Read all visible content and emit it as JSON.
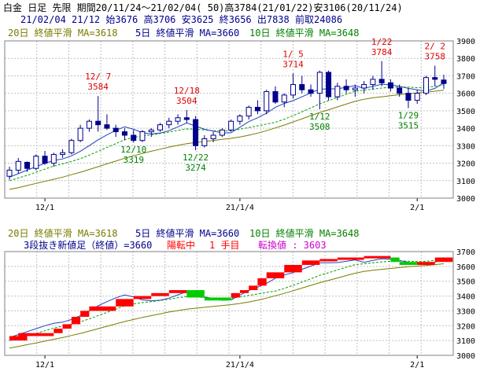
{
  "header": {
    "line1": "白金 日足 先限 期間20/11/24～21/02/04( 50)高3784(21/01/22)安3106(20/11/24)",
    "line2": "21/02/04 21/12 始3676 高3706 安3625 終3656 出7838 前取24086"
  },
  "legend": {
    "ma20": "20日 終値平滑 MA=3618",
    "ma5": "5日 終値平滑 MA=3660",
    "ma10": "10日 終値平滑 MA=3648"
  },
  "lower_info": {
    "kagi": "3段抜き新値足（終値）=3660",
    "trend": "陽転中",
    "count": "1 手目",
    "turn": "転換値 : 3603"
  },
  "colors": {
    "background": "#ffffff",
    "grid": "#c0c0c0",
    "candle_up_body": "#ffffff",
    "candle_down_body": "#00008b",
    "candle_outline": "#00008b",
    "ma5": "#1f3fbf",
    "ma10": "#00a000",
    "ma20": "#7a7a00",
    "annotation_high": "#e00000",
    "annotation_low": "#008000",
    "brick_up": "#ff0000",
    "brick_down": "#00cc00",
    "header_text": "#000000",
    "legend_ma20": "#7a7a00",
    "legend_ma5": "#00008b",
    "legend_ma10": "#008000",
    "trend_text": "#ff0000",
    "turn_text": "#cc00cc"
  },
  "chart_data": [
    {
      "type": "candlestick",
      "ylim": [
        3000,
        3900
      ],
      "yticks": [
        3000,
        3100,
        3200,
        3300,
        3400,
        3500,
        3600,
        3700,
        3800,
        3900
      ],
      "xticks": [
        {
          "index": 4,
          "label": "12/1"
        },
        {
          "index": 26,
          "label": "21/1/4"
        },
        {
          "index": 46,
          "label": "2/1"
        }
      ],
      "candles": [
        [
          3125,
          3180,
          3106,
          3160
        ],
        [
          3160,
          3230,
          3140,
          3210
        ],
        [
          3205,
          3210,
          3150,
          3170
        ],
        [
          3170,
          3250,
          3160,
          3240
        ],
        [
          3240,
          3270,
          3190,
          3200
        ],
        [
          3200,
          3260,
          3180,
          3250
        ],
        [
          3250,
          3280,
          3230,
          3260
        ],
        [
          3260,
          3340,
          3250,
          3330
        ],
        [
          3330,
          3420,
          3320,
          3400
        ],
        [
          3400,
          3450,
          3380,
          3440
        ],
        [
          3440,
          3584,
          3380,
          3420
        ],
        [
          3420,
          3480,
          3390,
          3400
        ],
        [
          3400,
          3420,
          3350,
          3380
        ],
        [
          3380,
          3400,
          3330,
          3360
        ],
        [
          3360,
          3390,
          3319,
          3330
        ],
        [
          3330,
          3390,
          3320,
          3380
        ],
        [
          3380,
          3400,
          3350,
          3390
        ],
        [
          3390,
          3430,
          3380,
          3420
        ],
        [
          3420,
          3460,
          3400,
          3440
        ],
        [
          3440,
          3480,
          3420,
          3460
        ],
        [
          3460,
          3504,
          3430,
          3450
        ],
        [
          3450,
          3470,
          3274,
          3300
        ],
        [
          3300,
          3360,
          3290,
          3340
        ],
        [
          3340,
          3380,
          3320,
          3360
        ],
        [
          3360,
          3400,
          3350,
          3390
        ],
        [
          3390,
          3450,
          3380,
          3440
        ],
        [
          3440,
          3480,
          3420,
          3470
        ],
        [
          3470,
          3530,
          3450,
          3520
        ],
        [
          3520,
          3560,
          3480,
          3500
        ],
        [
          3500,
          3620,
          3480,
          3610
        ],
        [
          3610,
          3640,
          3540,
          3550
        ],
        [
          3550,
          3600,
          3520,
          3590
        ],
        [
          3590,
          3714,
          3570,
          3650
        ],
        [
          3650,
          3700,
          3600,
          3620
        ],
        [
          3620,
          3650,
          3580,
          3600
        ],
        [
          3600,
          3730,
          3508,
          3720
        ],
        [
          3720,
          3730,
          3560,
          3580
        ],
        [
          3580,
          3660,
          3560,
          3640
        ],
        [
          3640,
          3680,
          3600,
          3620
        ],
        [
          3620,
          3650,
          3580,
          3630
        ],
        [
          3630,
          3670,
          3600,
          3650
        ],
        [
          3650,
          3700,
          3620,
          3680
        ],
        [
          3680,
          3784,
          3640,
          3660
        ],
        [
          3660,
          3680,
          3610,
          3630
        ],
        [
          3630,
          3650,
          3580,
          3600
        ],
        [
          3600,
          3630,
          3515,
          3560
        ],
        [
          3560,
          3620,
          3540,
          3600
        ],
        [
          3600,
          3700,
          3590,
          3690
        ],
        [
          3690,
          3758,
          3640,
          3680
        ],
        [
          3676,
          3706,
          3625,
          3656
        ]
      ],
      "ma5": [
        3120,
        3140,
        3160,
        3180,
        3200,
        3216,
        3224,
        3242,
        3268,
        3300,
        3334,
        3362,
        3388,
        3408,
        3394,
        3374,
        3368,
        3372,
        3386,
        3408,
        3430,
        3412,
        3394,
        3384,
        3372,
        3374,
        3406,
        3438,
        3460,
        3486,
        3520,
        3542,
        3558,
        3580,
        3602,
        3624,
        3624,
        3626,
        3634,
        3644,
        3628,
        3640,
        3652,
        3648,
        3640,
        3628,
        3620,
        3612,
        3628,
        3660
      ],
      "ma10": [
        3100,
        3115,
        3130,
        3148,
        3166,
        3184,
        3196,
        3210,
        3226,
        3246,
        3268,
        3290,
        3312,
        3334,
        3348,
        3356,
        3362,
        3370,
        3378,
        3388,
        3396,
        3394,
        3390,
        3386,
        3384,
        3386,
        3394,
        3404,
        3414,
        3424,
        3434,
        3452,
        3472,
        3494,
        3516,
        3540,
        3558,
        3576,
        3594,
        3612,
        3618,
        3624,
        3630,
        3634,
        3636,
        3636,
        3632,
        3634,
        3640,
        3648
      ],
      "ma20": [
        3050,
        3060,
        3072,
        3084,
        3096,
        3108,
        3120,
        3134,
        3148,
        3164,
        3180,
        3196,
        3212,
        3228,
        3242,
        3256,
        3268,
        3280,
        3292,
        3302,
        3312,
        3318,
        3324,
        3330,
        3336,
        3342,
        3350,
        3360,
        3372,
        3386,
        3402,
        3418,
        3436,
        3454,
        3472,
        3490,
        3506,
        3522,
        3538,
        3554,
        3566,
        3574,
        3580,
        3586,
        3592,
        3598,
        3602,
        3606,
        3612,
        3618
      ],
      "annotations": [
        {
          "index": 10,
          "kind": "high",
          "date": "12/ 7",
          "value": "3584"
        },
        {
          "index": 20,
          "kind": "high",
          "date": "12/18",
          "value": "3504"
        },
        {
          "index": 32,
          "kind": "high",
          "date": "1/ 5",
          "value": "3714"
        },
        {
          "index": 42,
          "kind": "high",
          "date": "1/22",
          "value": "3784"
        },
        {
          "index": 48,
          "kind": "high",
          "date": "2/ 2",
          "value": "3758"
        },
        {
          "index": 14,
          "kind": "low",
          "date": "12/10",
          "value": "3319"
        },
        {
          "index": 21,
          "kind": "low",
          "date": "12/22",
          "value": "3274"
        },
        {
          "index": 35,
          "kind": "low",
          "date": "1/12",
          "value": "3508"
        },
        {
          "index": 45,
          "kind": "low",
          "date": "1/29",
          "value": "3515"
        }
      ]
    },
    {
      "type": "kagi-bricks",
      "ylim": [
        3000,
        3700
      ],
      "yticks": [
        3000,
        3100,
        3200,
        3300,
        3400,
        3500,
        3600,
        3700
      ],
      "xticks": [
        {
          "index": 4,
          "label": "12/1"
        },
        {
          "index": 26,
          "label": "21/1/4"
        },
        {
          "index": 46,
          "label": "2/1"
        }
      ],
      "bricks": [
        [
          0,
          2,
          3100,
          3130,
          "up"
        ],
        [
          1,
          5,
          3130,
          3150,
          "up"
        ],
        [
          5,
          6,
          3150,
          3180,
          "up"
        ],
        [
          6,
          7,
          3180,
          3210,
          "up"
        ],
        [
          7,
          8,
          3210,
          3260,
          "up"
        ],
        [
          8,
          9,
          3260,
          3300,
          "up"
        ],
        [
          9,
          12,
          3300,
          3330,
          "up"
        ],
        [
          12,
          14,
          3330,
          3380,
          "up"
        ],
        [
          14,
          16,
          3380,
          3400,
          "up"
        ],
        [
          16,
          18,
          3400,
          3420,
          "up"
        ],
        [
          18,
          20,
          3420,
          3440,
          "up"
        ],
        [
          20,
          22,
          3390,
          3440,
          "down"
        ],
        [
          22,
          23,
          3370,
          3390,
          "down"
        ],
        [
          23,
          25,
          3370,
          3390,
          "down"
        ],
        [
          25,
          26,
          3390,
          3420,
          "up"
        ],
        [
          26,
          27,
          3420,
          3440,
          "up"
        ],
        [
          27,
          28,
          3440,
          3470,
          "up"
        ],
        [
          28,
          29,
          3470,
          3520,
          "up"
        ],
        [
          29,
          31,
          3520,
          3560,
          "up"
        ],
        [
          31,
          33,
          3560,
          3610,
          "up"
        ],
        [
          33,
          35,
          3610,
          3640,
          "up"
        ],
        [
          35,
          37,
          3640,
          3650,
          "up"
        ],
        [
          37,
          40,
          3650,
          3660,
          "up"
        ],
        [
          40,
          43,
          3660,
          3670,
          "up"
        ],
        [
          43,
          44,
          3630,
          3660,
          "down"
        ],
        [
          44,
          46,
          3610,
          3630,
          "down"
        ],
        [
          46,
          48,
          3610,
          3630,
          "up"
        ],
        [
          48,
          50,
          3630,
          3660,
          "up"
        ]
      ],
      "ma5": [
        3120,
        3140,
        3160,
        3180,
        3200,
        3216,
        3224,
        3242,
        3268,
        3300,
        3334,
        3362,
        3388,
        3408,
        3394,
        3374,
        3368,
        3372,
        3386,
        3408,
        3430,
        3412,
        3394,
        3384,
        3372,
        3374,
        3406,
        3438,
        3460,
        3486,
        3520,
        3542,
        3558,
        3580,
        3602,
        3624,
        3624,
        3626,
        3634,
        3644,
        3628,
        3640,
        3652,
        3648,
        3640,
        3628,
        3620,
        3612,
        3628,
        3660
      ],
      "ma10": [
        3100,
        3115,
        3130,
        3148,
        3166,
        3184,
        3196,
        3210,
        3226,
        3246,
        3268,
        3290,
        3312,
        3334,
        3348,
        3356,
        3362,
        3370,
        3378,
        3388,
        3396,
        3394,
        3390,
        3386,
        3384,
        3386,
        3394,
        3404,
        3414,
        3424,
        3434,
        3452,
        3472,
        3494,
        3516,
        3540,
        3558,
        3576,
        3594,
        3612,
        3618,
        3624,
        3630,
        3634,
        3636,
        3636,
        3632,
        3634,
        3640,
        3648
      ],
      "ma20": [
        3050,
        3060,
        3072,
        3084,
        3096,
        3108,
        3120,
        3134,
        3148,
        3164,
        3180,
        3196,
        3212,
        3228,
        3242,
        3256,
        3268,
        3280,
        3292,
        3302,
        3312,
        3318,
        3324,
        3330,
        3336,
        3342,
        3350,
        3360,
        3372,
        3386,
        3402,
        3418,
        3436,
        3454,
        3472,
        3490,
        3506,
        3522,
        3538,
        3554,
        3566,
        3574,
        3580,
        3586,
        3592,
        3598,
        3602,
        3606,
        3612,
        3618
      ]
    }
  ]
}
